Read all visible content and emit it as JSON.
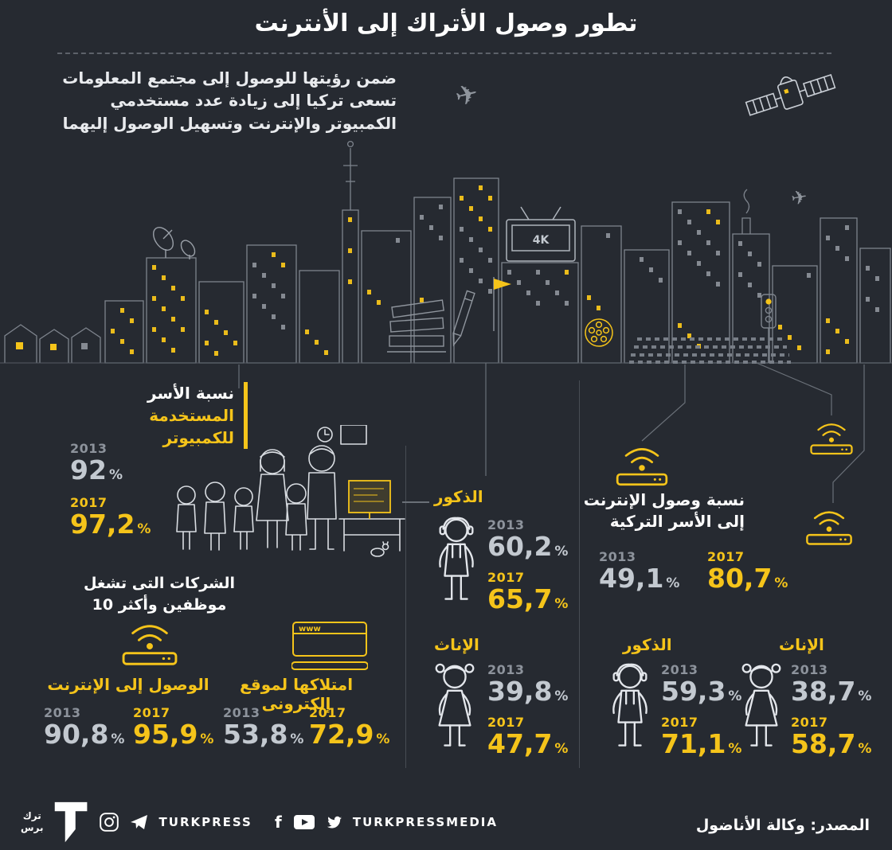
{
  "header": {
    "title": "تطور وصول الأتراك إلى الأنترنت",
    "intro": "ضمن رؤيتها للوصول إلى مجتمع المعلومات تسعى تركيا إلى زيادة عدد مستخدمي الكمبيوتر والإنترنت وتسهيل الوصول إليهما"
  },
  "years": {
    "y2013": "2013",
    "y2017": "2017"
  },
  "unit": "%",
  "sections": {
    "computer_households": {
      "title_line1": "نسبة الأسر",
      "title_line2": "المستخدمة للكمبيوتر",
      "v2013": "92",
      "v2017": "97,2"
    },
    "computer_males": {
      "title": "الذكور",
      "v2013": "60,2",
      "v2017": "65,7"
    },
    "computer_females": {
      "title": "الإناث",
      "v2013": "39,8",
      "v2017": "47,7"
    },
    "internet_households": {
      "title_line1": "نسبة وصول الإنترنت",
      "title_line2": "إلى الأسر التركية",
      "v2013": "49,1",
      "v2017": "80,7"
    },
    "internet_males": {
      "title": "الذكور",
      "v2013": "59,3",
      "v2017": "71,1"
    },
    "internet_females": {
      "title": "الإناث",
      "v2013": "38,7",
      "v2017": "58,7"
    },
    "companies": {
      "title_line1": "الشركات التى تشغل",
      "title_line2": "موظفين وأكثر 10",
      "internet_access": {
        "title": "الوصول إلى الإنترنت",
        "v2013": "90,8",
        "v2017": "95,9"
      },
      "website": {
        "title": "امتلاكها لموقع إلكترونى",
        "v2013": "53,8",
        "v2017": "72,9"
      }
    }
  },
  "illustration": {
    "tv_label": "4K",
    "www_label": "www"
  },
  "icons": {
    "airplane": "✈"
  },
  "footer": {
    "logo_line1": "ترك",
    "logo_line2": "برس",
    "brand_left": "TURKPRESS",
    "brand_right": "TURKPRESSMEDIA",
    "source": "المصدر: وكالة الأناضول"
  },
  "colors": {
    "background": "#262a31",
    "accent": "#f5c41a",
    "muted_label": "#8d939c",
    "value_2013": "#c3c9d0"
  },
  "chart_data": [
    {
      "type": "bar",
      "title": "نسبة الأسر المستخدمة للكمبيوتر",
      "categories": [
        "2013",
        "2017"
      ],
      "values": [
        92,
        97.2
      ],
      "unit": "%"
    },
    {
      "type": "bar",
      "title": "الذكور",
      "group": "نسبة الأسر المستخدمة للكمبيوتر",
      "categories": [
        "2013",
        "2017"
      ],
      "values": [
        60.2,
        65.7
      ],
      "unit": "%"
    },
    {
      "type": "bar",
      "title": "الإناث",
      "group": "نسبة الأسر المستخدمة للكمبيوتر",
      "categories": [
        "2013",
        "2017"
      ],
      "values": [
        39.8,
        47.7
      ],
      "unit": "%"
    },
    {
      "type": "bar",
      "title": "نسبة وصول الإنترنت إلى الأسر التركية",
      "categories": [
        "2013",
        "2017"
      ],
      "values": [
        49.1,
        80.7
      ],
      "unit": "%"
    },
    {
      "type": "bar",
      "title": "الذكور",
      "group": "نسبة وصول الإنترنت إلى الأسر التركية",
      "categories": [
        "2013",
        "2017"
      ],
      "values": [
        59.3,
        71.1
      ],
      "unit": "%"
    },
    {
      "type": "bar",
      "title": "الإناث",
      "group": "نسبة وصول الإنترنت إلى الأسر التركية",
      "categories": [
        "2013",
        "2017"
      ],
      "values": [
        38.7,
        58.7
      ],
      "unit": "%"
    },
    {
      "type": "bar",
      "title": "الوصول إلى الإنترنت",
      "group": "الشركات التى تشغل 10 موظفين وأكثر",
      "categories": [
        "2013",
        "2017"
      ],
      "values": [
        90.8,
        95.9
      ],
      "unit": "%"
    },
    {
      "type": "bar",
      "title": "امتلاكها لموقع إلكترونى",
      "group": "الشركات التى تشغل 10 موظفين وأكثر",
      "categories": [
        "2013",
        "2017"
      ],
      "values": [
        53.8,
        72.9
      ],
      "unit": "%"
    }
  ]
}
